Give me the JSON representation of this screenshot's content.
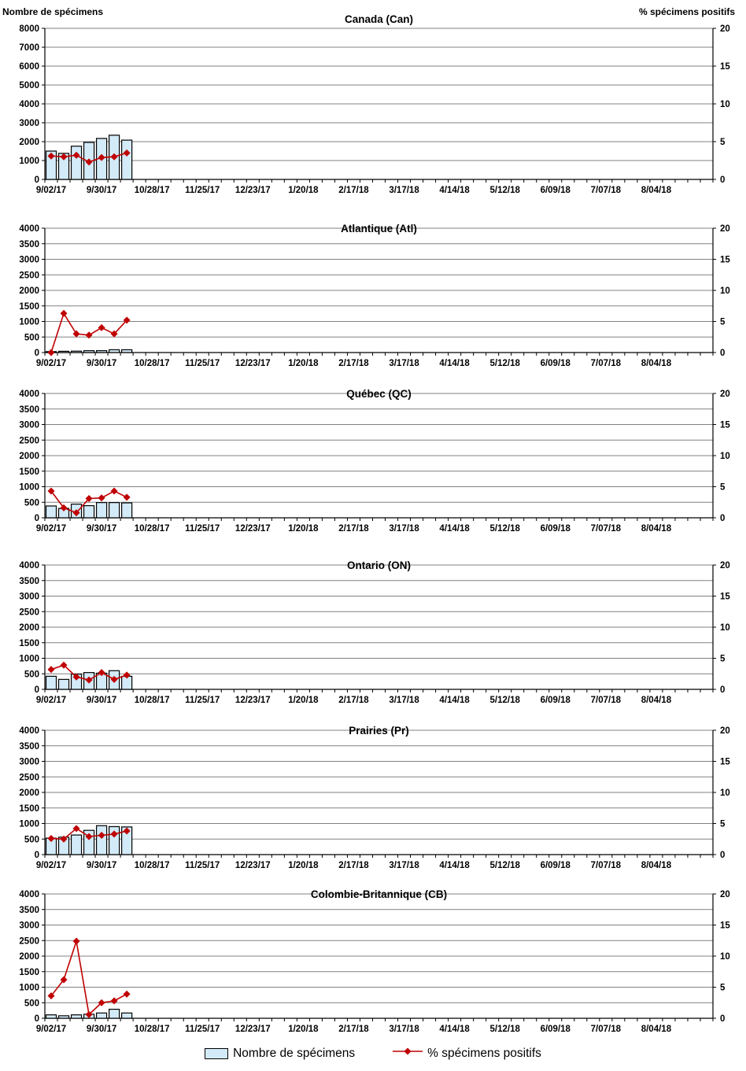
{
  "page": {
    "left_axis_title": "Nombre de spécimens",
    "right_axis_title": "% spécimens positifs",
    "legend": {
      "bars_label": "Nombre de spécimens",
      "line_label": "% spécimens positifs"
    },
    "colors": {
      "bar_fill": "#D3EAF8",
      "bar_stroke": "#000000",
      "line": "#C00000",
      "grid": "#808080",
      "axis": "#000000"
    }
  },
  "chart_data": {
    "type": "bar+line dual-axis, 6 stacked weekly panels",
    "x_tick_labels": [
      "9/02/17",
      "9/30/17",
      "10/28/17",
      "11/25/17",
      "12/23/17",
      "1/20/18",
      "2/17/18",
      "3/17/18",
      "4/14/18",
      "5/12/18",
      "6/09/18",
      "7/07/18",
      "8/04/18"
    ],
    "x_label_every_n_weeks": 4,
    "weeks_total": 53,
    "right_axis": {
      "title": "% spécimens positifs",
      "min": 0,
      "max": 20,
      "step": 5
    },
    "panels": [
      {
        "title": "Canada (Can)",
        "left_axis": {
          "title": "Nombre de spécimens",
          "min": 0,
          "max": 8000,
          "step": 1000
        },
        "bars_nombre_specimens": [
          1500,
          1380,
          1760,
          1960,
          2170,
          2340,
          2080
        ],
        "line_pct_positifs": [
          3.1,
          3.0,
          3.2,
          2.3,
          2.9,
          3.0,
          3.5
        ]
      },
      {
        "title": "Atlantique (Atl)",
        "left_axis": {
          "title": "Nombre de spécimens",
          "min": 0,
          "max": 4000,
          "step": 500
        },
        "bars_nombre_specimens": [
          30,
          40,
          45,
          60,
          60,
          90,
          90
        ],
        "line_pct_positifs": [
          0,
          6.3,
          3.0,
          2.8,
          4.0,
          3.0,
          5.2
        ]
      },
      {
        "title": "Québec (QC)",
        "left_axis": {
          "title": "Nombre de spécimens",
          "min": 0,
          "max": 4000,
          "step": 500
        },
        "bars_nombre_specimens": [
          380,
          300,
          440,
          390,
          490,
          490,
          480
        ],
        "line_pct_positifs": [
          4.3,
          1.6,
          0.8,
          3.1,
          3.2,
          4.3,
          3.3
        ]
      },
      {
        "title": "Ontario (ON)",
        "left_axis": {
          "title": "Nombre de spécimens",
          "min": 0,
          "max": 4000,
          "step": 500
        },
        "bars_nombre_specimens": [
          420,
          320,
          490,
          540,
          520,
          600,
          420
        ],
        "line_pct_positifs": [
          3.2,
          3.9,
          2.0,
          1.5,
          2.7,
          1.6,
          2.3
        ]
      },
      {
        "title": "Prairies (Pr)",
        "left_axis": {
          "title": "Nombre de spécimens",
          "min": 0,
          "max": 4000,
          "step": 500
        },
        "bars_nombre_specimens": [
          530,
          560,
          630,
          780,
          930,
          900,
          890
        ],
        "line_pct_positifs": [
          2.6,
          2.5,
          4.2,
          2.9,
          3.1,
          3.3,
          3.8
        ]
      },
      {
        "title": "Colombie-Britannique (CB)",
        "left_axis": {
          "title": "Nombre de spécimens",
          "min": 0,
          "max": 4000,
          "step": 500
        },
        "bars_nombre_specimens": [
          110,
          80,
          110,
          130,
          170,
          290,
          170
        ],
        "line_pct_positifs": [
          3.6,
          6.2,
          12.4,
          0.6,
          2.5,
          2.8,
          3.9
        ]
      }
    ]
  }
}
